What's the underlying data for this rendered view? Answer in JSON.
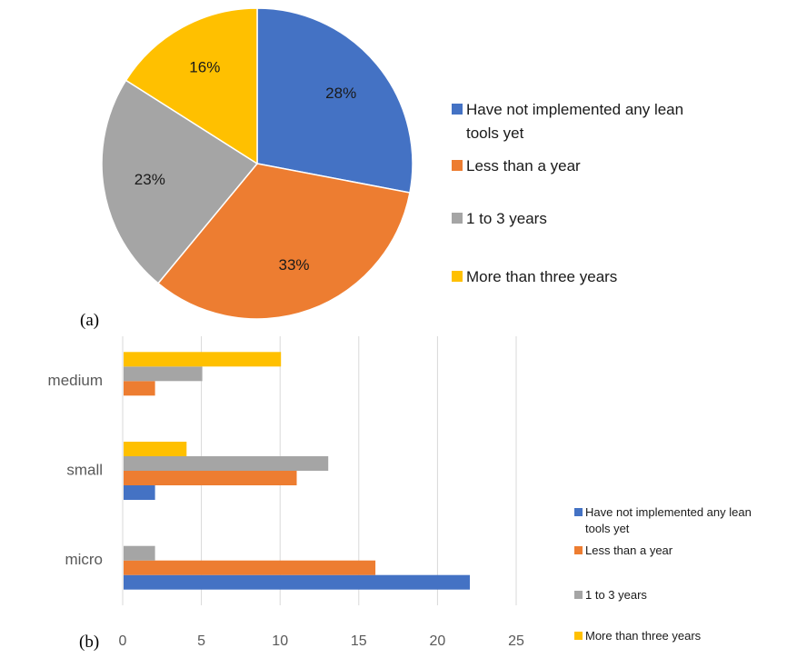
{
  "panels": {
    "a_label": "(a)",
    "b_label": "(b)"
  },
  "colors": {
    "s1": "#4472c4",
    "s2": "#ed7d31",
    "s3": "#a5a5a5",
    "s4": "#ffc000",
    "grid": "#d9d9d9",
    "axis_text": "#595959"
  },
  "chart_data": [
    {
      "type": "pie",
      "title": "",
      "slices": [
        {
          "label": "Have not implemented any lean tools yet",
          "value": 28,
          "text": "28%",
          "color": "#4472c4"
        },
        {
          "label": "Less than a year",
          "value": 33,
          "text": "33%",
          "color": "#ed7d31"
        },
        {
          "label": "1 to 3 years",
          "value": 23,
          "text": "23%",
          "color": "#a5a5a5"
        },
        {
          "label": "More than three years",
          "value": 16,
          "text": "16%",
          "color": "#ffc000"
        }
      ],
      "legend": {
        "position": "right",
        "entries": [
          {
            "lines": [
              "Have not implemented any lean",
              "tools yet"
            ],
            "color": "#4472c4"
          },
          {
            "lines": [
              "Less than a year"
            ],
            "color": "#ed7d31"
          },
          {
            "lines": [
              "1 to 3 years"
            ],
            "color": "#a5a5a5"
          },
          {
            "lines": [
              "More than three years"
            ],
            "color": "#ffc000"
          }
        ]
      }
    },
    {
      "type": "bar",
      "orientation": "horizontal",
      "title": "",
      "xlabel": "",
      "ylabel": "",
      "categories": [
        "micro",
        "small",
        "medium"
      ],
      "xlim": [
        0,
        25
      ],
      "xticks": [
        0,
        5,
        10,
        15,
        20,
        25
      ],
      "grid": true,
      "series": [
        {
          "name": "Have not implemented any lean tools yet",
          "values": [
            22,
            2,
            0
          ],
          "color": "#4472c4"
        },
        {
          "name": "Less than a year",
          "values": [
            16,
            11,
            2
          ],
          "color": "#ed7d31"
        },
        {
          "name": "1 to 3 years",
          "values": [
            2,
            13,
            5
          ],
          "color": "#a5a5a5"
        },
        {
          "name": "More than three years",
          "values": [
            0,
            4,
            10
          ],
          "color": "#ffc000"
        }
      ],
      "legend": {
        "position": "right",
        "entries": [
          {
            "lines": [
              "Have not implemented any lean",
              "tools yet"
            ],
            "color": "#4472c4"
          },
          {
            "lines": [
              "Less than a year"
            ],
            "color": "#ed7d31"
          },
          {
            "lines": [
              "1 to 3 years"
            ],
            "color": "#a5a5a5"
          },
          {
            "lines": [
              "More than three years"
            ],
            "color": "#ffc000"
          }
        ]
      }
    }
  ]
}
